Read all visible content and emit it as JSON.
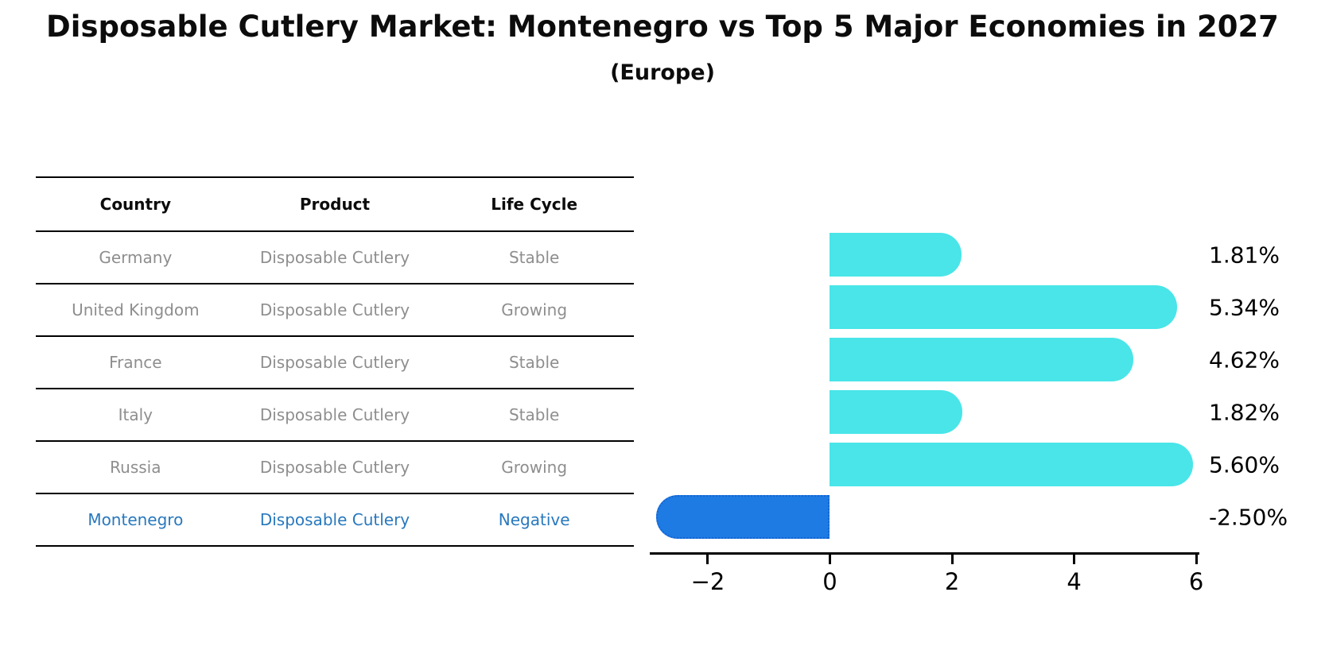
{
  "title": "Disposable Cutlery Market: Montenegro vs Top 5 Major Economies in 2027",
  "subtitle": "(Europe)",
  "table": {
    "headers": [
      "Country",
      "Product",
      "Life Cycle"
    ],
    "rows": [
      {
        "country": "Germany",
        "product": "Disposable Cutlery",
        "life_cycle": "Stable",
        "highlight": false
      },
      {
        "country": "United Kingdom",
        "product": "Disposable Cutlery",
        "life_cycle": "Growing",
        "highlight": false
      },
      {
        "country": "France",
        "product": "Disposable Cutlery",
        "life_cycle": "Stable",
        "highlight": false
      },
      {
        "country": "Italy",
        "product": "Disposable Cutlery",
        "life_cycle": "Stable",
        "highlight": false
      },
      {
        "country": "Russia",
        "product": "Disposable Cutlery",
        "life_cycle": "Growing",
        "highlight": false
      },
      {
        "country": "Montenegro",
        "product": "Disposable Cutlery",
        "life_cycle": "Negative",
        "highlight": true
      }
    ]
  },
  "chart_data": {
    "type": "bar",
    "orientation": "horizontal",
    "title": "Disposable Cutlery Market: Montenegro vs Top 5 Major Economies in 2027 (Europe)",
    "categories": [
      "Germany",
      "United Kingdom",
      "France",
      "Italy",
      "Russia",
      "Montenegro"
    ],
    "values": [
      1.81,
      5.34,
      4.62,
      1.82,
      5.6,
      -2.5
    ],
    "value_labels": [
      "1.81%",
      "5.34%",
      "4.62%",
      "1.82%",
      "5.60%",
      "-2.50%"
    ],
    "xlim": [
      -2.95,
      6.05
    ],
    "x_ticks": [
      -2,
      0,
      2,
      4,
      6
    ],
    "x_tick_labels": [
      "−2",
      "0",
      "2",
      "4",
      "6"
    ],
    "grid": false,
    "legend": false,
    "colors": {
      "positive_bar": "#49E5E8",
      "negative_bar": "#1E7BE4",
      "negative_bar_border": "#1565D2",
      "highlight_text": "#2878be",
      "row_text": "#8e8e8e",
      "label_text": "#000000"
    }
  }
}
